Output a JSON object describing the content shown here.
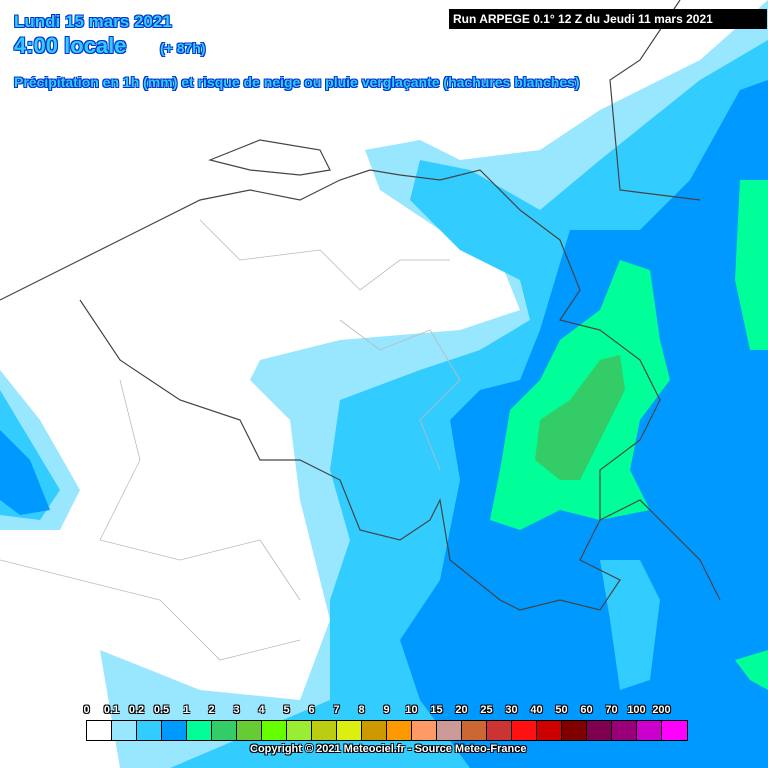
{
  "header": {
    "date": "Lundi 15 mars 2021",
    "time": "4:00 locale",
    "lead": "(+ 87h)",
    "description": "Précipitation en 1h (mm) et risque de neige ou pluie verglaçante (hachures blanches)",
    "run": "Run ARPEGE 0.1° 12 Z du Jeudi 11 mars 2021"
  },
  "legend": {
    "labels": [
      "0",
      "0.1",
      "0.2",
      "0.5",
      "1",
      "2",
      "3",
      "4",
      "5",
      "6",
      "7",
      "8",
      "9",
      "10",
      "15",
      "20",
      "25",
      "30",
      "40",
      "50",
      "60",
      "70",
      "100",
      "200"
    ],
    "colors": [
      "#ffffff",
      "#99e6ff",
      "#33ccff",
      "#0099ff",
      "#00ff99",
      "#33cc66",
      "#66cc33",
      "#66ff00",
      "#99ee33",
      "#bbcc11",
      "#ddee11",
      "#cc9900",
      "#ff9900",
      "#ff9966",
      "#cc9999",
      "#cc6633",
      "#cc3333",
      "#ff1111",
      "#cc0000",
      "#800000",
      "#800050",
      "#990077",
      "#cc00cc",
      "#ff00ff"
    ]
  },
  "footer": {
    "copyright": "Copyright © 2021 Meteociel.fr - Source Meteo-France"
  }
}
